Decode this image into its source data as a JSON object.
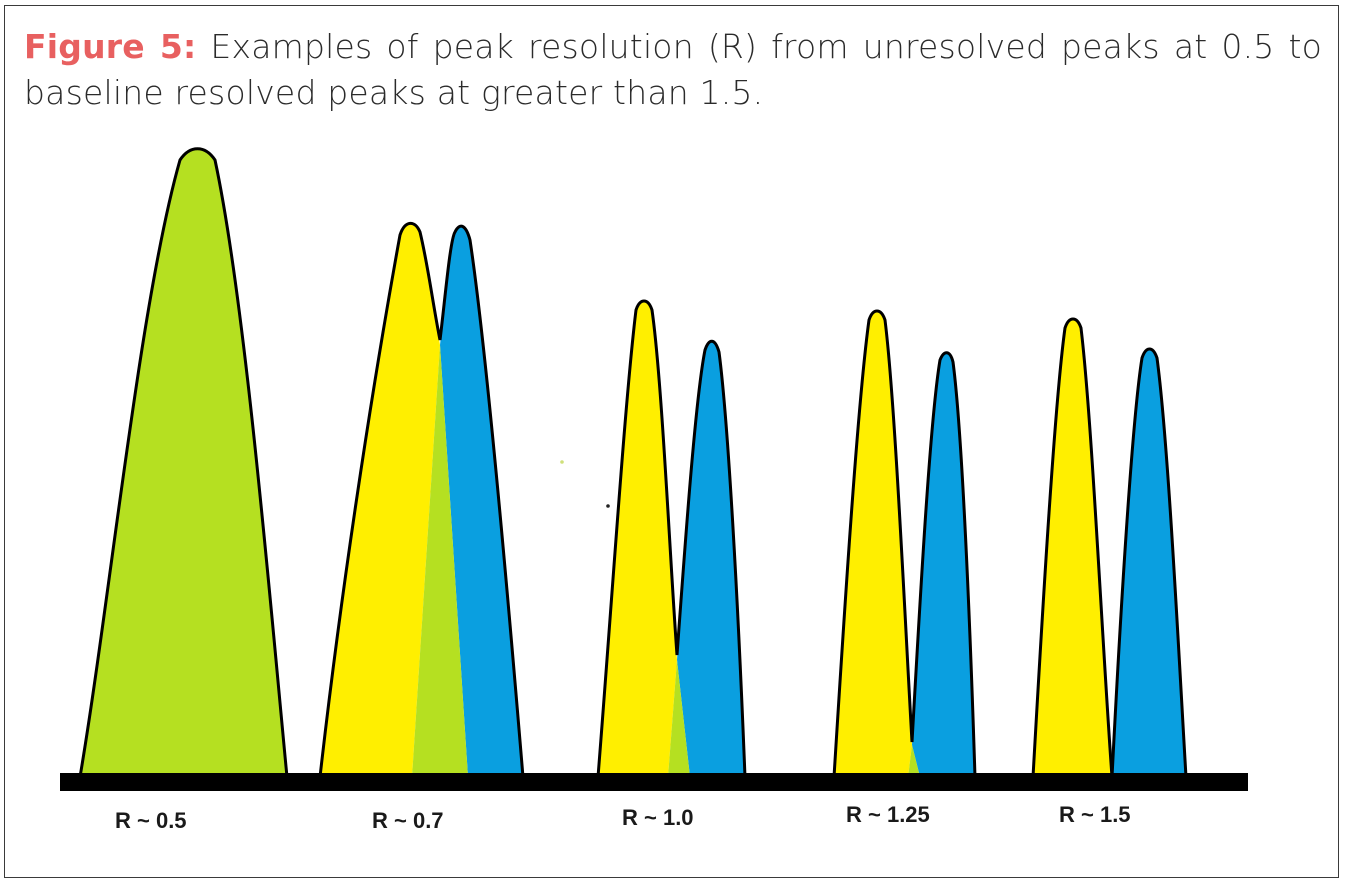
{
  "caption": {
    "label": "Figure 5:",
    "text": " Examples of peak resolution (R) from unresolved peaks at 0.5 to baseline resolved peaks at greater than 1.5."
  },
  "colors": {
    "peak_a": "#ffef00",
    "peak_b": "#0a9fe0",
    "overlap": "#b5e021",
    "outline": "#000000",
    "baseline": "#000000",
    "caption_label": "#e86060"
  },
  "peak_groups": [
    {
      "resolution_label": "R ~ 0.5"
    },
    {
      "resolution_label": "R ~ 0.7"
    },
    {
      "resolution_label": "R ~ 1.0"
    },
    {
      "resolution_label": "R ~ 1.25"
    },
    {
      "resolution_label": "R ~ 1.5"
    }
  ]
}
